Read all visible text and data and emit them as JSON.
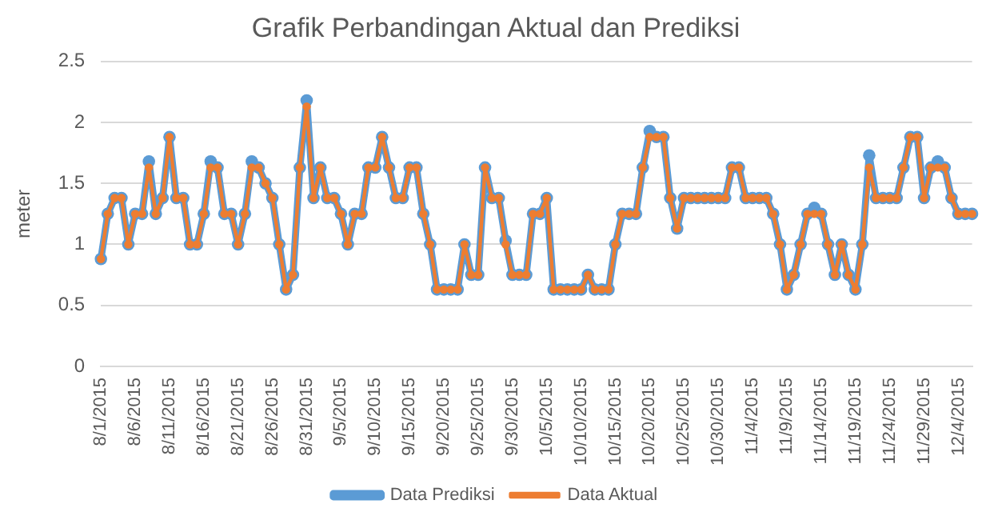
{
  "chart_data": {
    "type": "line",
    "title": "Grafik Perbandingan Aktual dan Prediksi",
    "ylabel": "meter",
    "categories": [
      "8/1/2015",
      null,
      null,
      null,
      null,
      "8/6/2015",
      null,
      null,
      null,
      null,
      "8/11/2015",
      null,
      null,
      null,
      null,
      "8/16/2015",
      null,
      null,
      null,
      null,
      "8/21/2015",
      null,
      null,
      null,
      null,
      "8/26/2015",
      null,
      null,
      null,
      null,
      "8/31/2015",
      null,
      null,
      null,
      null,
      "9/5/2015",
      null,
      null,
      null,
      null,
      "9/10/2015",
      null,
      null,
      null,
      null,
      "9/15/2015",
      null,
      null,
      null,
      null,
      "9/20/2015",
      null,
      null,
      null,
      null,
      "9/25/2015",
      null,
      null,
      null,
      null,
      "9/30/2015",
      null,
      null,
      null,
      null,
      "10/5/2015",
      null,
      null,
      null,
      null,
      "10/10/2015",
      null,
      null,
      null,
      null,
      "10/15/2015",
      null,
      null,
      null,
      null,
      "10/20/2015",
      null,
      null,
      null,
      null,
      "10/25/2015",
      null,
      null,
      null,
      null,
      "10/30/2015",
      null,
      null,
      null,
      null,
      "11/4/2015",
      null,
      null,
      null,
      null,
      "11/9/2015",
      null,
      null,
      null,
      null,
      "11/14/2015",
      null,
      null,
      null,
      null,
      "11/19/2015",
      null,
      null,
      null,
      null,
      "11/24/2015",
      null,
      null,
      null,
      null,
      "11/29/2015",
      null,
      null,
      null,
      null,
      "12/4/2015",
      null,
      null
    ],
    "series": [
      {
        "name": "Data Prediksi",
        "color": "#5b9bd5",
        "values": [
          0.88,
          1.25,
          1.38,
          1.38,
          1.0,
          1.25,
          1.25,
          1.68,
          1.25,
          1.38,
          1.88,
          1.38,
          1.38,
          1.0,
          1.0,
          1.25,
          1.68,
          1.63,
          1.25,
          1.25,
          1.0,
          1.25,
          1.68,
          1.63,
          1.5,
          1.38,
          1.0,
          0.63,
          0.75,
          1.63,
          2.18,
          1.38,
          1.63,
          1.38,
          1.38,
          1.25,
          1.0,
          1.25,
          1.25,
          1.63,
          1.63,
          1.88,
          1.63,
          1.38,
          1.38,
          1.63,
          1.63,
          1.25,
          1.0,
          0.63,
          0.63,
          0.63,
          0.63,
          1.0,
          0.75,
          0.75,
          1.63,
          1.38,
          1.38,
          1.03,
          0.75,
          0.75,
          0.75,
          1.25,
          1.25,
          1.38,
          0.63,
          0.63,
          0.63,
          0.63,
          0.63,
          0.75,
          0.63,
          0.63,
          0.63,
          1.0,
          1.25,
          1.25,
          1.25,
          1.63,
          1.93,
          1.88,
          1.88,
          1.38,
          1.13,
          1.38,
          1.38,
          1.38,
          1.38,
          1.38,
          1.38,
          1.38,
          1.63,
          1.63,
          1.38,
          1.38,
          1.38,
          1.38,
          1.25,
          1.0,
          0.63,
          0.75,
          1.0,
          1.25,
          1.3,
          1.25,
          1.0,
          0.75,
          1.0,
          0.75,
          0.63,
          1.0,
          1.73,
          1.38,
          1.38,
          1.38,
          1.38,
          1.63,
          1.88,
          1.88,
          1.38,
          1.63,
          1.68,
          1.63,
          1.38,
          1.25,
          1.25,
          1.25
        ]
      },
      {
        "name": "Data Aktual",
        "color": "#ed7d31",
        "values": [
          0.88,
          1.25,
          1.38,
          1.38,
          1.0,
          1.25,
          1.25,
          1.63,
          1.25,
          1.38,
          1.88,
          1.38,
          1.38,
          1.0,
          1.0,
          1.25,
          1.63,
          1.63,
          1.25,
          1.25,
          1.0,
          1.25,
          1.63,
          1.63,
          1.5,
          1.38,
          1.0,
          0.63,
          0.75,
          1.63,
          2.13,
          1.38,
          1.63,
          1.38,
          1.38,
          1.25,
          1.0,
          1.25,
          1.25,
          1.63,
          1.63,
          1.88,
          1.63,
          1.38,
          1.38,
          1.63,
          1.63,
          1.25,
          1.0,
          0.63,
          0.63,
          0.63,
          0.63,
          1.0,
          0.75,
          0.75,
          1.63,
          1.38,
          1.38,
          1.0,
          0.75,
          0.75,
          0.75,
          1.25,
          1.25,
          1.38,
          0.63,
          0.63,
          0.63,
          0.63,
          0.63,
          0.75,
          0.63,
          0.63,
          0.63,
          1.0,
          1.25,
          1.25,
          1.25,
          1.63,
          1.88,
          1.88,
          1.88,
          1.38,
          1.13,
          1.38,
          1.38,
          1.38,
          1.38,
          1.38,
          1.38,
          1.38,
          1.63,
          1.63,
          1.38,
          1.38,
          1.38,
          1.38,
          1.25,
          1.0,
          0.63,
          0.75,
          1.0,
          1.25,
          1.25,
          1.25,
          1.0,
          0.75,
          1.0,
          0.75,
          0.63,
          1.0,
          1.63,
          1.38,
          1.38,
          1.38,
          1.38,
          1.63,
          1.88,
          1.88,
          1.38,
          1.63,
          1.63,
          1.63,
          1.38,
          1.25,
          1.25,
          1.25
        ]
      }
    ],
    "ylim": [
      0,
      2.5
    ],
    "yticks": [
      0,
      0.5,
      1,
      1.5,
      2,
      2.5
    ],
    "grid": "y",
    "legend": "bottom",
    "marker": "circle",
    "line_style": "solid"
  }
}
